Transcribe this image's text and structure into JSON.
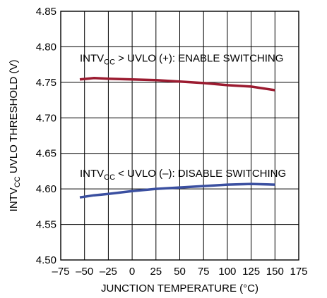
{
  "chart_data": {
    "type": "line",
    "xlabel": "JUNCTION TEMPERATURE (°C)",
    "ylabel": "INTVCC UVLO THRESHOLD (V)",
    "ylabel_parts": {
      "pre": "INTV",
      "sub": "CC",
      "post": " UVLO THRESHOLD (V)"
    },
    "xlim": [
      -75,
      175
    ],
    "ylim": [
      4.5,
      4.85
    ],
    "x_ticks": [
      -75,
      -50,
      -25,
      0,
      25,
      50,
      75,
      100,
      125,
      150,
      175
    ],
    "x_tick_labels": [
      "–75",
      "–50",
      "–25",
      "0",
      "25",
      "50",
      "75",
      "100",
      "125",
      "150",
      "175"
    ],
    "y_ticks": [
      4.5,
      4.55,
      4.6,
      4.65,
      4.7,
      4.75,
      4.8,
      4.85
    ],
    "y_tick_labels": [
      "4.50",
      "4.55",
      "4.60",
      "4.65",
      "4.70",
      "4.75",
      "4.80",
      "4.85"
    ],
    "grid": true,
    "series": [
      {
        "color": "#9b1b30",
        "x": [
          -55,
          -40,
          -25,
          0,
          25,
          50,
          75,
          100,
          125,
          150
        ],
        "y": [
          4.754,
          4.756,
          4.755,
          4.754,
          4.753,
          4.751,
          4.749,
          4.746,
          4.744,
          4.739
        ]
      },
      {
        "color": "#3a4fa0",
        "x": [
          -55,
          -40,
          -25,
          0,
          25,
          50,
          75,
          100,
          125,
          150
        ],
        "y": [
          4.588,
          4.591,
          4.593,
          4.597,
          4.6,
          4.602,
          4.604,
          4.606,
          4.607,
          4.606
        ]
      }
    ],
    "annotations": [
      {
        "pre": "INTV",
        "sub": "CC",
        "post": " > UVLO (+): ENABLE SWITCHING",
        "x": -55,
        "y": 4.779
      },
      {
        "pre": "INTV",
        "sub": "CC",
        "post": " < UVLO (–): DISABLE SWITCHING",
        "x": -55,
        "y": 4.617
      }
    ]
  }
}
